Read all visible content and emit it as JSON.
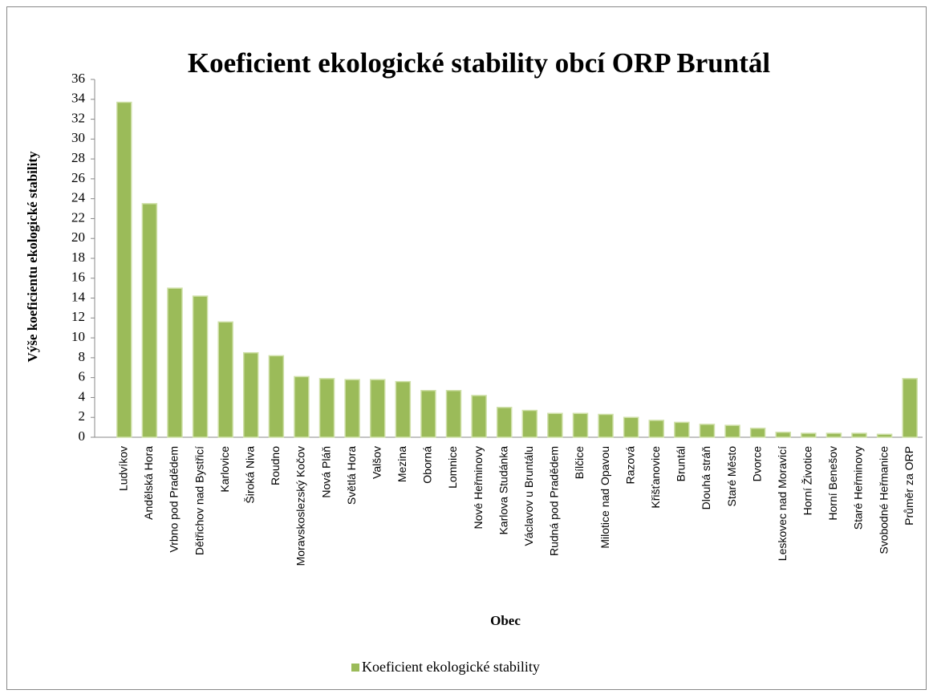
{
  "chart_data": {
    "type": "bar",
    "title": "Koeficient ekologické stability obcí ORP Bruntál",
    "x_label": "Obec",
    "y_label": "Výše koeficientu ekologické stability",
    "categories": [
      "Ludvíkov",
      "Andělská Hora",
      "Vrbno pod Pradědem",
      "Dětřichov nad Bystřicí",
      "Karlovice",
      "Široká Niva",
      "Roudno",
      "Moravskoslezský Kočov",
      "Nová Pláň",
      "Světlá Hora",
      "Valšov",
      "Mezina",
      "Oborná",
      "Lomnice",
      "Nové Heřminovy",
      "Karlova Studánka",
      "Václavov u Bruntálu",
      "Rudná pod Pradědem",
      "Bílčice",
      "Milotice nad Opavou",
      "Razová",
      "Křišťanovice",
      "Bruntál",
      "Dlouhá stráň",
      "Staré Město",
      "Dvorce",
      "Leskovec nad Moravicí",
      "Horní Životice",
      "Horní Benešov",
      "Staré Heřminovy",
      "Svobodné Heřmanice",
      "Průměr za ORP"
    ],
    "series": [
      {
        "name": "Koeficient ekologické stability",
        "color": "#9bbb59",
        "values": [
          33.7,
          23.5,
          15.0,
          14.2,
          11.6,
          8.5,
          8.2,
          6.1,
          5.9,
          5.8,
          5.8,
          5.6,
          4.7,
          4.7,
          4.2,
          3.0,
          2.7,
          2.4,
          2.4,
          2.3,
          2.0,
          1.7,
          1.5,
          1.3,
          1.2,
          0.9,
          0.5,
          0.4,
          0.4,
          0.4,
          0.3,
          5.9
        ]
      }
    ],
    "ylim": [
      0,
      36
    ],
    "yticks": [
      0,
      2,
      4,
      6,
      8,
      10,
      12,
      14,
      16,
      18,
      20,
      22,
      24,
      26,
      28,
      30,
      32,
      34,
      36
    ],
    "grid": false,
    "legend": "bottom"
  }
}
